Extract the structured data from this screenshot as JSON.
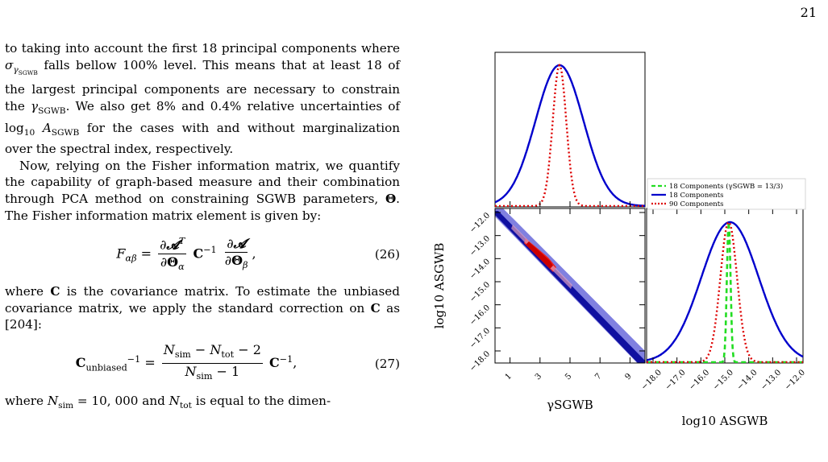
{
  "page_number": "21",
  "paragraphs": {
    "p1": "to taking into account the first 18 principal components where σγSGWB falls bellow 100% level. This means that at least 18 of the largest principal components are necessary to constrain the γSGWB. We also get 8% and 0.4% relative uncertainties of log10 ASGWB for the cases with and without marginalization over the spectral index, respectively.",
    "p2": "Now, relying on the Fisher information matrix, we quantify the capability of graph-based measure and their combination through PCA method on constraining SGWB parameters, Θ. The Fisher information matrix element is given by:",
    "p3": "where C is the covariance matrix. To estimate the unbiased covariance matrix, we apply the standard correction on C as [204]:",
    "p4": "where Nsim = 10, 000 and Ntot is equal to the dimen-"
  },
  "equations": {
    "eq26_number": "(26)",
    "eq27_number": "(27)"
  },
  "figure": {
    "legend": [
      {
        "label": "18 Components (γSGWB = 13/3)",
        "color": "#22dd22",
        "style": "dashed"
      },
      {
        "label": "18 Components",
        "color": "#0000cc",
        "style": "solid"
      },
      {
        "label": "90 Components",
        "color": "#dd0000",
        "style": "dotted"
      }
    ],
    "y_axis_label": "log10 ASGWB",
    "x_axis_label_left": "γSGWB",
    "x_axis_label_right": "log10 ASGWB"
  },
  "chart_data": [
    {
      "type": "line",
      "panel": "gamma marginal",
      "xlim": [
        0,
        10
      ],
      "series": [
        {
          "name": "18 Components",
          "center": 4.3,
          "sigma": 1.6
        },
        {
          "name": "90 Components",
          "center": 4.3,
          "sigma": 0.45
        }
      ]
    },
    {
      "type": "heatmap",
      "panel": "joint contour",
      "xlim": [
        0,
        10
      ],
      "ylim": [
        -18.0,
        -12.0
      ],
      "x_ticks": [
        "1",
        "3",
        "5",
        "7",
        "9"
      ],
      "y_ticks": [
        "−12.0",
        "−13.0",
        "−14.0",
        "−15.0",
        "−16.0",
        "−17.0",
        "−18.0"
      ]
    },
    {
      "type": "line",
      "panel": "log10 A marginal",
      "xlim": [
        -18.0,
        -12.0
      ],
      "x_ticks": [
        "−18.0",
        "−17.0",
        "−16.0",
        "−15.0",
        "−14.0",
        "−13.0",
        "−12.0"
      ],
      "series": [
        {
          "name": "18 Components (γSGWB = 13/3)",
          "center": -14.85,
          "sigma": 0.07
        },
        {
          "name": "18 Components",
          "center": -14.8,
          "sigma": 1.1
        },
        {
          "name": "90 Components",
          "center": -14.85,
          "sigma": 0.32
        }
      ]
    }
  ]
}
